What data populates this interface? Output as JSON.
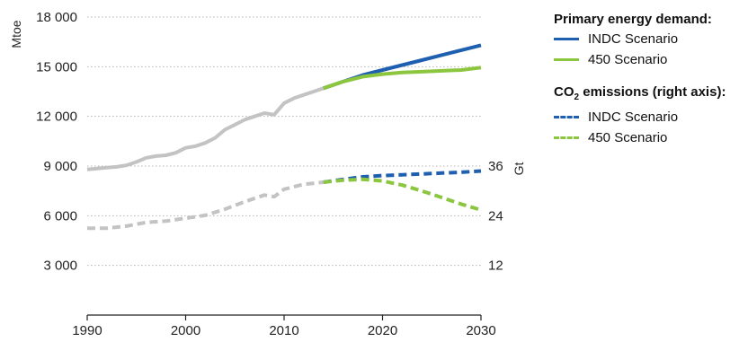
{
  "chart_data": {
    "type": "line",
    "title": "",
    "xlabel": "",
    "ylabel": "Mtoe",
    "y2label": "Gt",
    "xlim": [
      1990,
      2030
    ],
    "ylim": [
      0,
      18000
    ],
    "y2lim": [
      0,
      72
    ],
    "x_ticks": [
      "1990",
      "2000",
      "2010",
      "2020",
      "2030"
    ],
    "y_ticks": [
      "3 000",
      "6 000",
      "9 000",
      "12 000",
      "15 000",
      "18 000"
    ],
    "y2_ticks": [
      "12",
      "24",
      "36"
    ],
    "grid": true,
    "legend_position": "right",
    "legend_groups": [
      {
        "heading": "Primary energy demand:",
        "items": [
          {
            "label": "INDC Scenario",
            "color": "#1f5fb0",
            "style": "solid"
          },
          {
            "label": "450 Scenario",
            "color": "#8cc63f",
            "style": "solid"
          }
        ]
      },
      {
        "heading_prefix": "CO",
        "heading_sub": "2",
        "heading_suffix": " emissions (right axis):",
        "items": [
          {
            "label": "INDC Scenario",
            "color": "#1f5fb0",
            "style": "dashed"
          },
          {
            "label": "450 Scenario",
            "color": "#8cc63f",
            "style": "dashed"
          }
        ]
      }
    ],
    "series": [
      {
        "axis": "left",
        "style": "solid",
        "color": "#c3c3c3",
        "role": "historical",
        "x": [
          1990,
          1991,
          1992,
          1993,
          1994,
          1995,
          1996,
          1997,
          1998,
          1999,
          2000,
          2001,
          2002,
          2003,
          2004,
          2005,
          2006,
          2007,
          2008,
          2009,
          2010,
          2011,
          2012,
          2013,
          2014
        ],
        "y": [
          8800,
          8850,
          8900,
          8950,
          9050,
          9250,
          9500,
          9600,
          9650,
          9800,
          10100,
          10200,
          10400,
          10700,
          11200,
          11500,
          11800,
          12000,
          12200,
          12100,
          12800,
          13100,
          13300,
          13500,
          13700
        ]
      },
      {
        "name": "INDC Scenario",
        "axis": "left",
        "style": "solid",
        "color": "#1f5fb0",
        "x": [
          2014,
          2016,
          2018,
          2020,
          2022,
          2024,
          2026,
          2028,
          2030
        ],
        "y": [
          13700,
          14100,
          14500,
          14800,
          15100,
          15400,
          15700,
          16000,
          16300
        ]
      },
      {
        "name": "450 Scenario",
        "axis": "left",
        "style": "solid",
        "color": "#8cc63f",
        "x": [
          2014,
          2016,
          2018,
          2020,
          2022,
          2024,
          2026,
          2028,
          2030
        ],
        "y": [
          13700,
          14100,
          14400,
          14550,
          14650,
          14700,
          14750,
          14800,
          14950
        ]
      },
      {
        "axis": "right",
        "style": "dashed",
        "color": "#c3c3c3",
        "role": "historical",
        "x": [
          1990,
          1992,
          1994,
          1996,
          1998,
          2000,
          2002,
          2004,
          2006,
          2008,
          2009,
          2010,
          2012,
          2014
        ],
        "y": [
          21,
          21,
          21.5,
          22.4,
          22.7,
          23.4,
          24.1,
          25.6,
          27.4,
          29.0,
          28.6,
          30.4,
          31.6,
          32.1
        ]
      },
      {
        "name": "INDC Scenario",
        "axis": "right",
        "style": "dashed",
        "color": "#1f5fb0",
        "x": [
          2014,
          2016,
          2018,
          2020,
          2022,
          2024,
          2026,
          2028,
          2030
        ],
        "y": [
          32.1,
          32.8,
          33.4,
          33.7,
          33.9,
          34.1,
          34.3,
          34.5,
          34.8
        ]
      },
      {
        "name": "450 Scenario",
        "axis": "right",
        "style": "dashed",
        "color": "#8cc63f",
        "x": [
          2014,
          2016,
          2018,
          2020,
          2022,
          2024,
          2026,
          2028,
          2030
        ],
        "y": [
          32.1,
          32.6,
          32.8,
          32.4,
          31.4,
          30.0,
          28.4,
          26.8,
          25.4
        ]
      }
    ]
  }
}
